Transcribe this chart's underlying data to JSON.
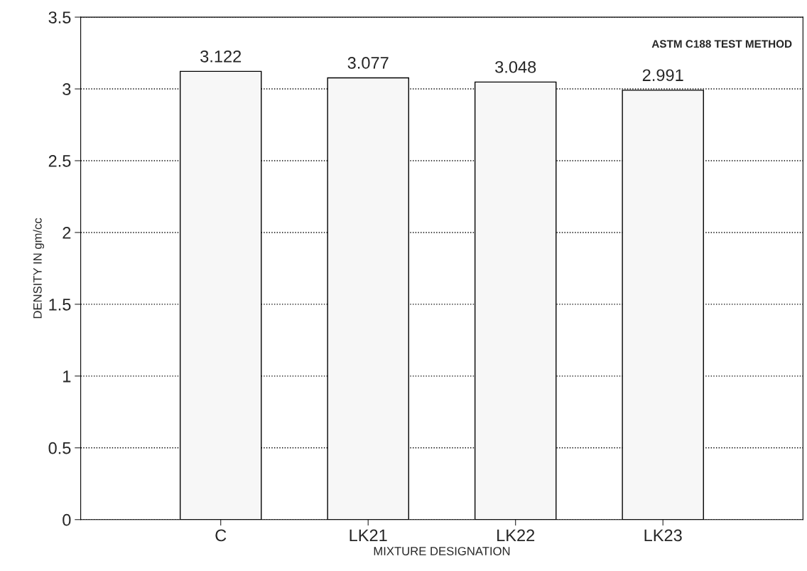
{
  "chart_data": {
    "type": "bar",
    "categories": [
      "C",
      "LK21",
      "LK22",
      "LK23"
    ],
    "values": [
      3.122,
      3.077,
      3.048,
      2.991
    ],
    "color": "#f7f7f7",
    "data_labels": true,
    "xlabel": "MIXTURE DESIGNATION",
    "ylabel": "DENSITY IN gm/cc",
    "ylim": [
      0,
      3.5
    ],
    "yticks": [
      0,
      0.5,
      1,
      1.5,
      2,
      2.5,
      3,
      3.5
    ],
    "grid": "y",
    "annotations": [
      "ASTM C188 TEST METHOD"
    ]
  }
}
